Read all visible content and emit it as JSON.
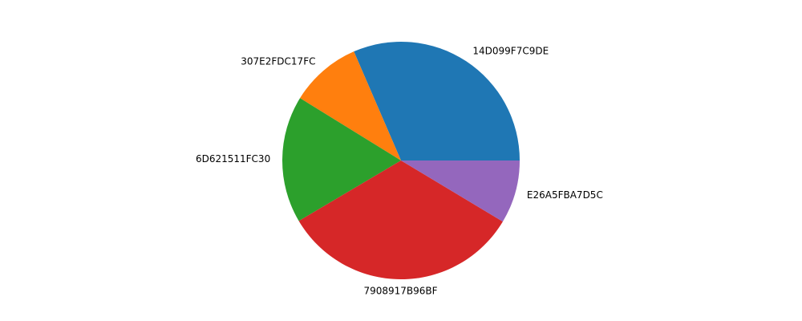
{
  "chart_data": {
    "type": "pie",
    "labels": [
      "14D099F7C9DE",
      "307E2FDC17FC",
      "6D621511FC30",
      "7908917B96BF",
      "E26A5FBA7D5C"
    ],
    "values": [
      31.5,
      9.7,
      17.3,
      32.9,
      8.6
    ],
    "colors": [
      "#1f77b4",
      "#ff7f0e",
      "#2ca02c",
      "#d62728",
      "#9467bd"
    ],
    "start_angle_deg": 0,
    "direction": "counterclockwise",
    "title": ""
  }
}
